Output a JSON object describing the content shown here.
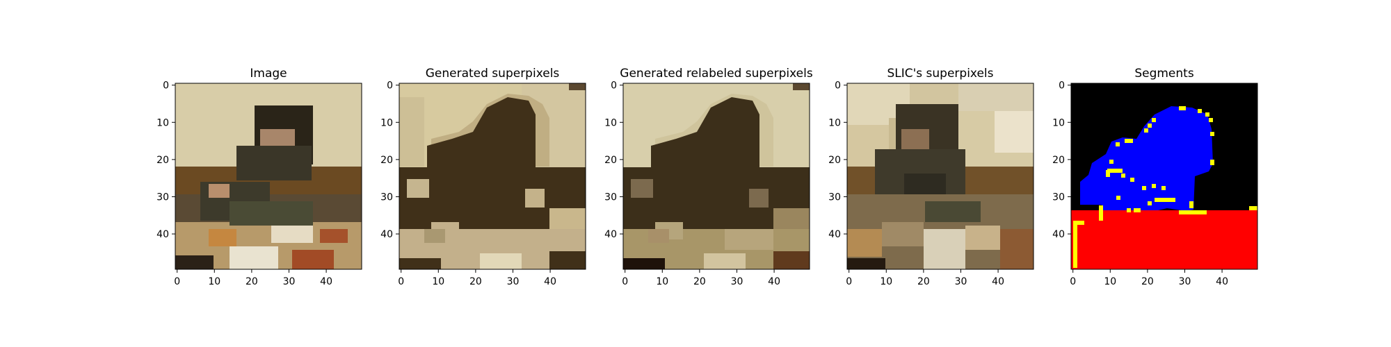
{
  "chart_data": [
    {
      "type": "heatmap",
      "title": "Image",
      "xlim": [
        0,
        49
      ],
      "ylim": [
        49,
        0
      ],
      "xticks": [
        "0",
        "10",
        "20",
        "30",
        "40"
      ],
      "yticks": [
        "0",
        "10",
        "20",
        "30",
        "40"
      ],
      "image": "photo of a person eating at a table with food dishes"
    },
    {
      "type": "heatmap",
      "title": "Generated superpixels",
      "xlim": [
        0,
        49
      ],
      "ylim": [
        49,
        0
      ],
      "xticks": [
        "0",
        "10",
        "20",
        "30",
        "40"
      ],
      "yticks": [
        "0",
        "10",
        "20",
        "30",
        "40"
      ],
      "image": "superpixel segmentation rendered as flat tan/brown regions"
    },
    {
      "type": "heatmap",
      "title": "Generated relabeled superpixels",
      "xlim": [
        0,
        49
      ],
      "ylim": [
        49,
        0
      ],
      "xticks": [
        "0",
        "10",
        "20",
        "30",
        "40"
      ],
      "yticks": [
        "0",
        "10",
        "20",
        "30",
        "40"
      ],
      "image": "relabeled superpixel segmentation with flat tan/brown regions"
    },
    {
      "type": "heatmap",
      "title": "SLIC's superpixels",
      "xlim": [
        0,
        49
      ],
      "ylim": [
        49,
        0
      ],
      "xticks": [
        "0",
        "10",
        "20",
        "30",
        "40"
      ],
      "yticks": [
        "0",
        "10",
        "20",
        "30",
        "40"
      ],
      "image": "SLIC superpixels with mean colors"
    },
    {
      "type": "heatmap",
      "title": "Segments",
      "xlim": [
        0,
        49
      ],
      "ylim": [
        49,
        0
      ],
      "xticks": [
        "0",
        "10",
        "20",
        "30",
        "40"
      ],
      "yticks": [
        "0",
        "10",
        "20",
        "30",
        "40"
      ],
      "image": "segment map: black background, blue person, red table, yellow boundaries"
    }
  ]
}
